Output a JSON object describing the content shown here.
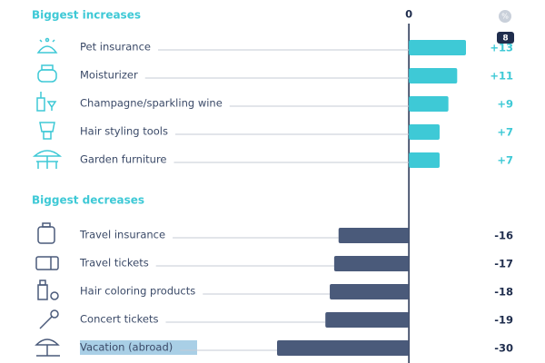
{
  "chart_data": {
    "type": "diverging-bar",
    "xlim": [
      -30,
      13
    ],
    "xticks": [
      0
    ],
    "unit_badge": "%",
    "tooltip": "8",
    "groups": [
      {
        "name": "Biggest increases",
        "color": "#3ec9d6",
        "categories": [
          "Pet insurance",
          "Moisturizer",
          "Champagne/sparkling wine",
          "Hair styling tools",
          "Garden furniture"
        ],
        "values": [
          13,
          11,
          9,
          7,
          7
        ],
        "value_labels": [
          "+13",
          "+11",
          "+9",
          "+7",
          "+7"
        ]
      },
      {
        "name": "Biggest decreases",
        "color": "#4a5a7a",
        "categories": [
          "Travel insurance",
          "Travel tickets",
          "Hair coloring products",
          "Concert tickets",
          "Vacation (abroad)"
        ],
        "values": [
          -16,
          -17,
          -18,
          -19,
          -30
        ]
      }
    ]
  }
}
